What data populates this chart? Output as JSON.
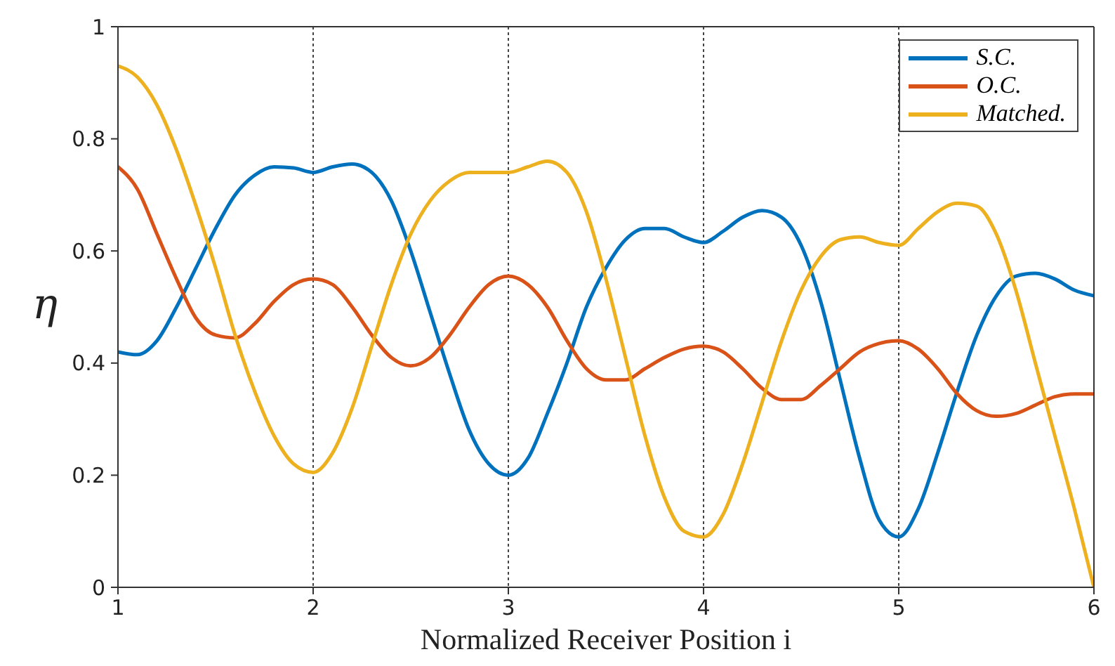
{
  "chart_data": {
    "type": "line",
    "xlabel": "Normalized Receiver Position i",
    "ylabel": "η",
    "x": [
      1.0,
      1.1,
      1.2,
      1.3,
      1.4,
      1.5,
      1.6,
      1.7,
      1.8,
      1.9,
      2.0,
      2.1,
      2.2,
      2.3,
      2.4,
      2.5,
      2.6,
      2.7,
      2.8,
      2.9,
      3.0,
      3.1,
      3.2,
      3.3,
      3.4,
      3.5,
      3.6,
      3.7,
      3.8,
      3.9,
      4.0,
      4.1,
      4.2,
      4.3,
      4.4,
      4.5,
      4.6,
      4.7,
      4.8,
      4.9,
      5.0,
      5.1,
      5.2,
      5.3,
      5.4,
      5.5,
      5.6,
      5.7,
      5.8,
      5.9,
      6.0
    ],
    "series": [
      {
        "name": "S.C.",
        "color": "#0072bd",
        "values": [
          0.42,
          0.415,
          0.44,
          0.5,
          0.57,
          0.64,
          0.7,
          0.735,
          0.75,
          0.748,
          0.74,
          0.75,
          0.755,
          0.74,
          0.69,
          0.6,
          0.49,
          0.38,
          0.28,
          0.22,
          0.2,
          0.23,
          0.31,
          0.4,
          0.5,
          0.57,
          0.62,
          0.64,
          0.64,
          0.625,
          0.615,
          0.635,
          0.66,
          0.672,
          0.66,
          0.61,
          0.51,
          0.37,
          0.23,
          0.12,
          0.09,
          0.14,
          0.24,
          0.35,
          0.45,
          0.52,
          0.555,
          0.56,
          0.55,
          0.53,
          0.52
        ]
      },
      {
        "name": "O.C.",
        "color": "#d95319",
        "values": [
          0.75,
          0.71,
          0.63,
          0.55,
          0.48,
          0.45,
          0.445,
          0.47,
          0.51,
          0.54,
          0.55,
          0.54,
          0.5,
          0.45,
          0.41,
          0.395,
          0.41,
          0.45,
          0.5,
          0.54,
          0.555,
          0.54,
          0.5,
          0.44,
          0.39,
          0.37,
          0.37,
          0.39,
          0.41,
          0.425,
          0.43,
          0.42,
          0.39,
          0.355,
          0.335,
          0.335,
          0.36,
          0.39,
          0.42,
          0.435,
          0.44,
          0.425,
          0.39,
          0.345,
          0.315,
          0.305,
          0.31,
          0.325,
          0.34,
          0.345,
          0.345
        ]
      },
      {
        "name": "Matched.",
        "color": "#edb120",
        "values": [
          0.93,
          0.91,
          0.86,
          0.78,
          0.68,
          0.57,
          0.45,
          0.35,
          0.27,
          0.22,
          0.205,
          0.24,
          0.32,
          0.43,
          0.54,
          0.63,
          0.69,
          0.725,
          0.74,
          0.74,
          0.74,
          0.75,
          0.76,
          0.74,
          0.67,
          0.55,
          0.41,
          0.27,
          0.16,
          0.1,
          0.09,
          0.13,
          0.22,
          0.33,
          0.44,
          0.53,
          0.59,
          0.62,
          0.625,
          0.615,
          0.61,
          0.64,
          0.67,
          0.685,
          0.68,
          0.63,
          0.53,
          0.4,
          0.27,
          0.14,
          0.0
        ]
      }
    ],
    "xlim": [
      1,
      6
    ],
    "xticks": [
      1,
      2,
      3,
      4,
      5,
      6
    ],
    "ylim": [
      0,
      1
    ],
    "yticks": [
      0,
      0.2,
      0.4,
      0.6,
      0.8,
      1
    ],
    "grid": "x",
    "legend": "top right",
    "marker": "none",
    "line_style": "solid"
  }
}
